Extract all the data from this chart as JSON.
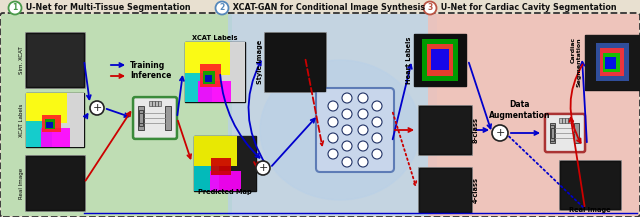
{
  "title_parts": [
    {
      "num": "1",
      "text": " U-Net for Multi-Tissue Segmentation",
      "num_color": "#4a9a4a",
      "text_color": "#000000"
    },
    {
      "num": "2",
      "text": " XCAT-GAN for Conditional Image Synthesis",
      "num_color": "#5588bb",
      "text_color": "#000000"
    },
    {
      "num": "3",
      "text": " U-Net for Cardiac Cavity Segmentation",
      "num_color": "#bb5544",
      "text_color": "#000000"
    }
  ],
  "bg_color": "#e8e0d0",
  "outer_border_color": "#444444",
  "section1_bg": "#b8ddb0",
  "section2_bg": "#b8d0e8",
  "section3_bg": "#f0c0b8",
  "arrow_blue": "#0000cc",
  "arrow_red": "#cc0000",
  "legend_training": "Training",
  "legend_inference": "Inference",
  "figsize": [
    6.4,
    2.17
  ],
  "dpi": 100
}
